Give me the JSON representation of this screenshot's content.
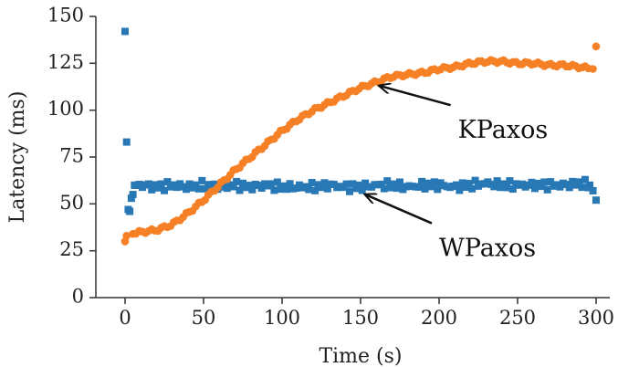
{
  "chart_data": {
    "type": "scatter",
    "title": "",
    "xlabel": "Time (s)",
    "ylabel": "Latency (ms)",
    "xlim": [
      -18,
      312
    ],
    "ylim": [
      0,
      150
    ],
    "x_ticks": [
      "0",
      "50",
      "100",
      "150",
      "200",
      "250",
      "300"
    ],
    "y_ticks": [
      "0",
      "25",
      "50",
      "75",
      "100",
      "125",
      "150"
    ],
    "grid": false,
    "legend": "none",
    "series": [
      {
        "name": "WPaxos",
        "marker": "square",
        "color": "#2878b5",
        "points": [
          [
            0,
            142
          ],
          [
            1,
            83
          ],
          [
            2,
            47
          ],
          [
            3,
            46
          ],
          [
            4,
            53
          ],
          [
            5,
            55
          ],
          [
            6,
            60
          ],
          [
            10,
            60
          ],
          [
            20,
            59
          ],
          [
            30,
            60
          ],
          [
            40,
            59
          ],
          [
            50,
            60
          ],
          [
            60,
            59
          ],
          [
            70,
            60
          ],
          [
            80,
            59
          ],
          [
            90,
            60
          ],
          [
            100,
            59
          ],
          [
            110,
            59
          ],
          [
            120,
            59
          ],
          [
            130,
            60
          ],
          [
            140,
            59
          ],
          [
            150,
            59
          ],
          [
            160,
            60
          ],
          [
            170,
            60
          ],
          [
            180,
            59
          ],
          [
            190,
            60
          ],
          [
            200,
            60
          ],
          [
            210,
            59
          ],
          [
            220,
            60
          ],
          [
            230,
            61
          ],
          [
            240,
            60
          ],
          [
            250,
            60
          ],
          [
            260,
            60
          ],
          [
            270,
            60
          ],
          [
            280,
            60
          ],
          [
            290,
            61
          ],
          [
            296,
            60
          ],
          [
            298,
            57
          ],
          [
            300,
            52
          ]
        ]
      },
      {
        "name": "KPaxos",
        "marker": "circle",
        "color": "#f58025",
        "points": [
          [
            0,
            30
          ],
          [
            1,
            33
          ],
          [
            5,
            34
          ],
          [
            10,
            35
          ],
          [
            20,
            36
          ],
          [
            30,
            39
          ],
          [
            40,
            45
          ],
          [
            50,
            52
          ],
          [
            60,
            60
          ],
          [
            70,
            68
          ],
          [
            80,
            75
          ],
          [
            90,
            82
          ],
          [
            100,
            89
          ],
          [
            110,
            95
          ],
          [
            120,
            100
          ],
          [
            130,
            104
          ],
          [
            140,
            108
          ],
          [
            150,
            112
          ],
          [
            160,
            115
          ],
          [
            170,
            118
          ],
          [
            180,
            119
          ],
          [
            190,
            120
          ],
          [
            200,
            122
          ],
          [
            210,
            123
          ],
          [
            220,
            125
          ],
          [
            230,
            126
          ],
          [
            240,
            126
          ],
          [
            250,
            125
          ],
          [
            260,
            125
          ],
          [
            270,
            124
          ],
          [
            280,
            124
          ],
          [
            290,
            123
          ],
          [
            298,
            122
          ],
          [
            300,
            134
          ]
        ]
      }
    ],
    "annotations": [
      {
        "text": "KPaxos",
        "text_at": [
          212,
          90
        ],
        "arrow_to": [
          162,
          113
        ]
      },
      {
        "text": "WPaxos",
        "text_at": [
          200,
          27
        ],
        "arrow_to": [
          153,
          55
        ]
      }
    ]
  }
}
